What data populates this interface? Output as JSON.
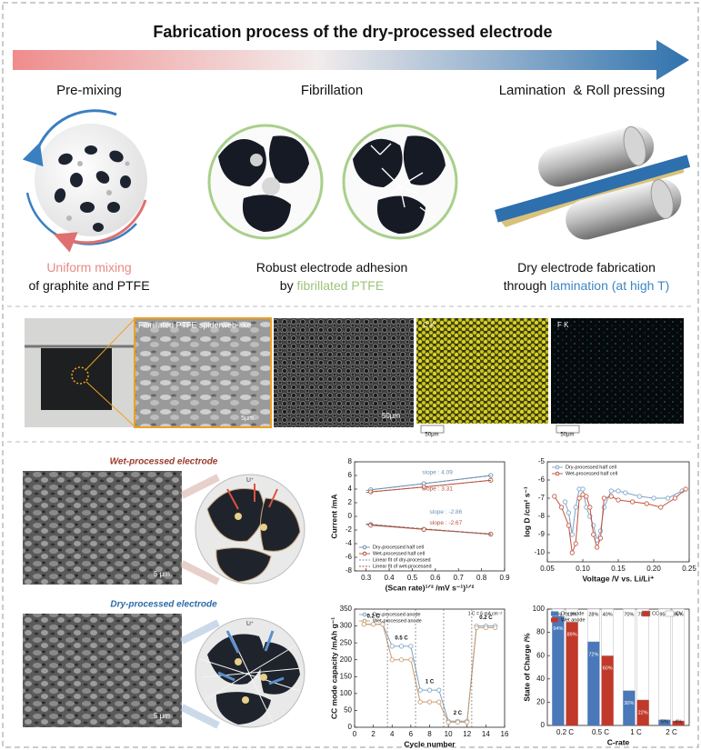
{
  "header": {
    "title": "Fabrication process of the dry-processed electrode"
  },
  "steps": [
    {
      "title": "Pre-mixing",
      "lines": [
        [
          {
            "text": "Uniform mixing",
            "color": "#e88a86"
          }
        ],
        [
          {
            "text": "of graphite and PTFE"
          }
        ]
      ]
    },
    {
      "title": "Fibrillation",
      "lines": [
        [
          {
            "text": "Robust electrode adhesion"
          }
        ],
        [
          {
            "text": "by "
          },
          {
            "text": "fibrillated PTFE",
            "color": "#9cc47a"
          }
        ]
      ]
    },
    {
      "title": "Lamination  & Roll pressing",
      "lines": [
        [
          {
            "text": "Dry electrode fabrication"
          }
        ],
        [
          {
            "text": "through "
          },
          {
            "text": "lamination (at high T)",
            "color": "#3b86c4"
          }
        ]
      ]
    }
  ],
  "micrographs": {
    "zoom_label": "Fibrillated PTFE spiderweb-like",
    "zoom_scale": "5μm",
    "sem_scale": "50μm",
    "maps": [
      {
        "element": "C K",
        "scale": "50μm"
      },
      {
        "element": "F K",
        "scale": "50μm"
      }
    ]
  },
  "electrodes": [
    {
      "title": "Wet-processed electrode",
      "color": "#9b3a2a",
      "scale": "5 μm",
      "ion": "Li⁺"
    },
    {
      "title": "Dry-processed electrode",
      "color": "#2d6aa8",
      "scale": "5 μm",
      "ion": "Li⁺"
    }
  ],
  "chart_data": [
    {
      "type": "line",
      "xlabel": "(Scan rate)¹ᐟ² /mV s⁻¹)¹ᐟ²",
      "ylabel": "Current /mA",
      "xlim": [
        0.25,
        0.9
      ],
      "xticks": [
        0.3,
        0.4,
        0.5,
        0.6,
        0.7,
        0.8,
        0.9
      ],
      "ylim": [
        -8,
        8
      ],
      "yticks": [
        -8,
        -6,
        -4,
        -2,
        0,
        2,
        4,
        6,
        8
      ],
      "legend": "lower left",
      "series": [
        {
          "name": "Dry-processed half cell",
          "color": "#6f8fb0",
          "x": [
            0.32,
            0.55,
            0.84,
            null,
            0.32,
            0.55,
            0.84
          ],
          "values": [
            3.9,
            4.8,
            6.0,
            null,
            -1.2,
            -1.9,
            -2.6
          ]
        },
        {
          "name": "Wet-processed half cell",
          "color": "#b5523b",
          "x": [
            0.32,
            0.55,
            0.84,
            null,
            0.32,
            0.55,
            0.84
          ],
          "values": [
            3.6,
            4.3,
            5.3,
            null,
            -1.3,
            -1.9,
            -2.6
          ]
        },
        {
          "name": "Linear fit of dry-processed",
          "color": "#6f8fb0",
          "dash": true,
          "x": [
            0.3,
            0.85,
            null,
            0.3,
            0.85
          ],
          "values": [
            3.8,
            6.0,
            null,
            -1.1,
            -2.7
          ]
        },
        {
          "name": "Linear fit of wet-processed",
          "color": "#b5523b",
          "dash": true,
          "x": [
            0.3,
            0.85,
            null,
            0.3,
            0.85
          ],
          "values": [
            3.5,
            5.3,
            null,
            -1.2,
            -2.6
          ]
        }
      ],
      "annotations": [
        "slope : 4.09",
        "slope : 3.31",
        "slope : -2.86",
        "slope : -2.67"
      ]
    },
    {
      "type": "line",
      "xlabel": "Voltage /V vs. Li/Li⁺",
      "ylabel": "log D /cm² s⁻¹",
      "xlim": [
        0.05,
        0.25
      ],
      "xticks": [
        0.05,
        {
          "value": 0.1,
          "label": "0.10"
        },
        0.15,
        {
          "value": 0.2,
          "label": "0.20"
        },
        0.25
      ],
      "ylim": [
        -10.5,
        -5
      ],
      "yticks": [
        -10,
        -9,
        -8,
        -7,
        -6,
        -5
      ],
      "legend": "upper left",
      "series": [
        {
          "name": "Dry-processed half cell",
          "color": "#7aa3c8",
          "x": [
            0.075,
            0.08,
            0.085,
            0.09,
            0.095,
            0.1,
            0.105,
            0.11,
            0.115,
            0.12,
            0.125,
            0.13,
            0.14,
            0.15,
            0.16,
            0.18,
            0.2,
            0.22,
            0.24
          ],
          "values": [
            -7.2,
            -7.8,
            -9.0,
            -7.5,
            -6.5,
            -6.5,
            -7.5,
            -8.0,
            -8.5,
            -9.3,
            -8.8,
            -7.5,
            -6.6,
            -6.6,
            -6.7,
            -6.9,
            -7.0,
            -7.0,
            -6.6
          ]
        },
        {
          "name": "Wet-processed half cell",
          "color": "#c0503a",
          "x": [
            0.06,
            0.07,
            0.08,
            0.085,
            0.09,
            0.095,
            0.1,
            0.105,
            0.11,
            0.115,
            0.12,
            0.125,
            0.13,
            0.14,
            0.15,
            0.17,
            0.19,
            0.21,
            0.23,
            0.245
          ],
          "values": [
            -6.9,
            -7.5,
            -8.5,
            -10.0,
            -9.5,
            -7.0,
            -6.8,
            -6.9,
            -7.5,
            -9.0,
            -9.7,
            -9.2,
            -7.0,
            -6.9,
            -7.1,
            -7.2,
            -7.3,
            -7.5,
            -7.0,
            -6.5
          ]
        }
      ]
    },
    {
      "type": "line",
      "xlabel": "Cycle number",
      "ylabel": "CC mode capacity /mAh g⁻¹",
      "xlim": [
        0,
        16
      ],
      "xticks": [
        0,
        2,
        4,
        6,
        8,
        10,
        12,
        14,
        16
      ],
      "ylim": [
        0,
        350
      ],
      "yticks": [
        0,
        50,
        100,
        150,
        200,
        250,
        300,
        350
      ],
      "legend": "upper left",
      "x": [
        1,
        2,
        3,
        4,
        5,
        6,
        7,
        8,
        9,
        10,
        11,
        12,
        13,
        14,
        15
      ],
      "series": [
        {
          "name": "Dry-processed anode",
          "color": "#7aa3c8",
          "values": [
            305,
            305,
            305,
            240,
            240,
            240,
            110,
            110,
            110,
            18,
            18,
            18,
            300,
            300,
            300
          ]
        },
        {
          "name": "Wet-processed anode",
          "color": "#c99a6a",
          "values": [
            305,
            305,
            305,
            200,
            200,
            200,
            75,
            75,
            75,
            15,
            15,
            15,
            295,
            295,
            295
          ]
        }
      ],
      "annotations": [
        "0.2 C",
        "0.5 C",
        "1 C",
        "2 C",
        "0.2 C"
      ],
      "note": "1 C = 6 mA cm⁻²"
    },
    {
      "type": "bar",
      "xlabel": "C-rate",
      "ylabel": "State of Charge /%",
      "categories": [
        "0.2 C",
        "0.5 C",
        "1 C",
        "2 C"
      ],
      "ylim": [
        0,
        100
      ],
      "yticks": [
        0,
        20,
        40,
        60,
        80,
        100
      ],
      "legend": "upper left",
      "series": [
        {
          "name": "Dry anode",
          "color": "#4a78b8",
          "values": [
            94,
            72,
            30,
            5
          ],
          "value_labels": [
            "94%",
            "72%",
            "30%",
            "5%"
          ],
          "cv_values": [
            6,
            28,
            70,
            95
          ],
          "cv_value_labels": [
            "6%",
            "28%",
            "70%",
            "95%"
          ]
        },
        {
          "name": "Wet anode",
          "color": "#c0392b",
          "values": [
            89,
            60,
            22,
            4
          ],
          "value_labels": [
            "89%",
            "60%",
            "22%",
            "4%"
          ],
          "cv_values": [
            11,
            40,
            78,
            96
          ],
          "cv_value_labels": [
            "11%",
            "40%",
            "78%",
            "96%"
          ]
        }
      ],
      "stack_legend": [
        {
          "name": "CC",
          "color": "#c0392b"
        },
        {
          "name": "CV",
          "color": "#ffffff"
        }
      ]
    }
  ]
}
